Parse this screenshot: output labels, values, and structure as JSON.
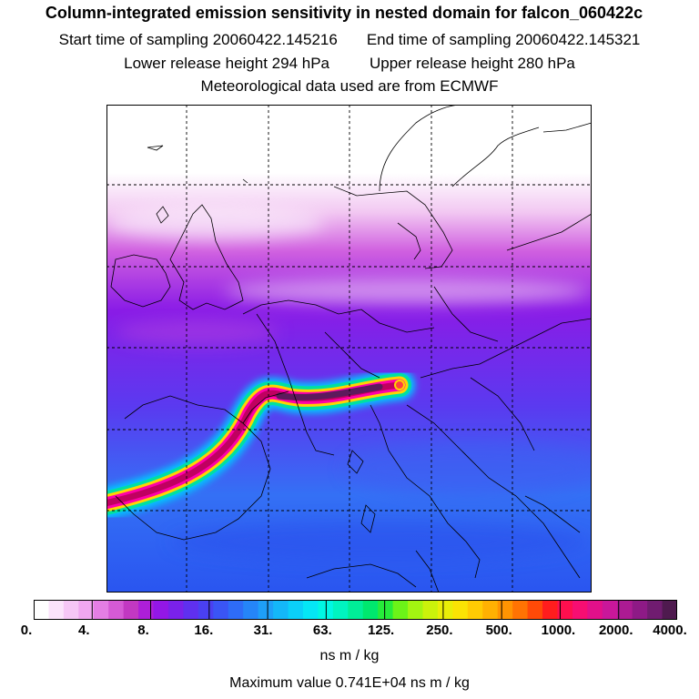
{
  "header": {
    "title": "Column-integrated emission sensitivity in nested domain for falcon_060422c",
    "start_time": "Start time of sampling 20060422.145216",
    "end_time": "End time of sampling 20060422.145321",
    "lower_height": "Lower release height  294 hPa",
    "upper_height": "Upper release height  280 hPa",
    "met_data": "Meteorological data used are from ECMWF"
  },
  "colorbar": {
    "tick_labels": [
      "0.",
      "4.",
      "8.",
      "16.",
      "31.",
      "63.",
      "125.",
      "250.",
      "500.",
      "1000.",
      "2000.",
      "4000."
    ],
    "colors": [
      "#ffffff",
      "#fbe3fb",
      "#f6c6f6",
      "#f0a7f0",
      "#e47ee4",
      "#d55ad5",
      "#c238c2",
      "#ad1fd8",
      "#9317e6",
      "#7a21ea",
      "#5f30ef",
      "#4a40f2",
      "#3a55f5",
      "#2e6cf7",
      "#2585f8",
      "#1e9ff8",
      "#14b7f8",
      "#0bcff8",
      "#05e6f5",
      "#00f7e3",
      "#00f4c0",
      "#00ee98",
      "#00e86e",
      "#26ec3a",
      "#6cf318",
      "#a3f511",
      "#cbf20b",
      "#e9ee08",
      "#fbe304",
      "#ffcb03",
      "#ffb102",
      "#ff9402",
      "#ff7303",
      "#ff4a08",
      "#ff1d1d",
      "#ff0f4e",
      "#f70e72",
      "#e2108a",
      "#c9179a",
      "#ac1b93",
      "#8e1a86",
      "#701c70",
      "#4f1a4f"
    ],
    "unit": "ns m / kg"
  },
  "footer": {
    "max_value": "Maximum value  0.741E+04 ns m / kg"
  },
  "map": {
    "plume_colors": [
      "#ff00aa",
      "#ffd400",
      "#00e0a0",
      "#00c8ff",
      "#5c1a5c",
      "#c00060",
      "#ff4040"
    ],
    "background_gradient": [
      "#ffffff",
      "#f2c8f2",
      "#d060e0",
      "#8a1ce6",
      "#5a3af0",
      "#3470f5",
      "#2a55f0"
    ]
  }
}
